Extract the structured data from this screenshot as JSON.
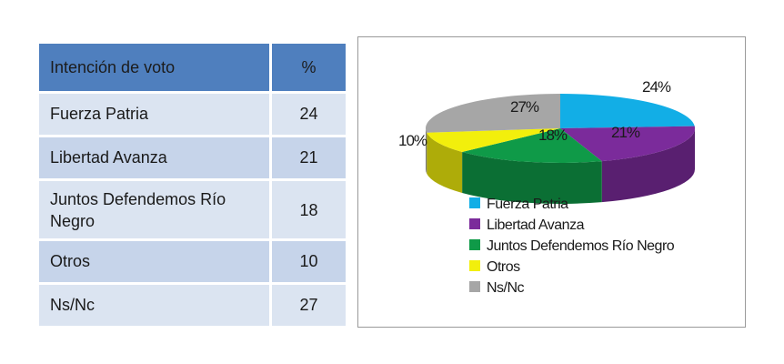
{
  "table": {
    "header_label": "Intención de voto",
    "header_pct": "%",
    "rows": [
      {
        "label": "Fuerza Patria",
        "value": "24"
      },
      {
        "label": "Libertad Avanza",
        "value": "21"
      },
      {
        "label": "Juntos Defendemos Río Negro",
        "value": "18"
      },
      {
        "label": "Otros",
        "value": "10"
      },
      {
        "label": "Ns/Nc",
        "value": "27"
      }
    ]
  },
  "chart_data": {
    "type": "pie",
    "style": "3d",
    "categories": [
      "Fuerza Patria",
      "Libertad Avanza",
      "Juntos Defendemos Río Negro",
      "Otros",
      "Ns/Nc"
    ],
    "values": [
      24,
      21,
      18,
      10,
      27
    ],
    "labels": [
      "24%",
      "21%",
      "18%",
      "10%",
      "27%"
    ],
    "colors": [
      "#12aee6",
      "#7b2b9b",
      "#0f9a48",
      "#f2ef0c",
      "#a6a6a6"
    ],
    "legend_position": "bottom",
    "title": "",
    "xlabel": "",
    "ylabel": ""
  }
}
